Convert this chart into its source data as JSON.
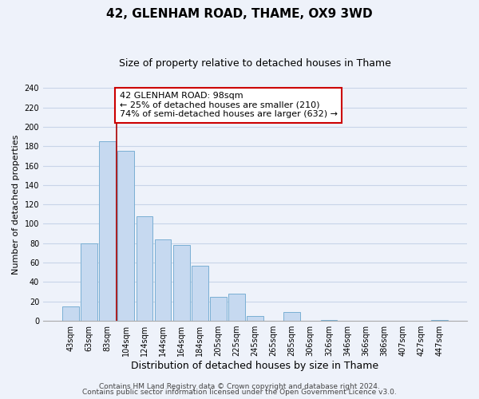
{
  "title": "42, GLENHAM ROAD, THAME, OX9 3WD",
  "subtitle": "Size of property relative to detached houses in Thame",
  "xlabel": "Distribution of detached houses by size in Thame",
  "ylabel": "Number of detached properties",
  "bins": [
    "43sqm",
    "63sqm",
    "83sqm",
    "104sqm",
    "124sqm",
    "144sqm",
    "164sqm",
    "184sqm",
    "205sqm",
    "225sqm",
    "245sqm",
    "265sqm",
    "285sqm",
    "306sqm",
    "326sqm",
    "346sqm",
    "366sqm",
    "386sqm",
    "407sqm",
    "427sqm",
    "447sqm"
  ],
  "bar_heights": [
    15,
    80,
    185,
    175,
    108,
    84,
    78,
    57,
    25,
    28,
    5,
    0,
    9,
    0,
    1,
    0,
    0,
    0,
    0,
    0,
    1
  ],
  "bar_color": "#c6d9f0",
  "bar_edge_color": "#7aafd4",
  "vline_color": "#aa0000",
  "vline_x": 2.5,
  "annotation_text_line1": "42 GLENHAM ROAD: 98sqm",
  "annotation_text_line2": "← 25% of detached houses are smaller (210)",
  "annotation_text_line3": "74% of semi-detached houses are larger (632) →",
  "annotation_box_color": "white",
  "annotation_box_edge_color": "#cc0000",
  "ylim": [
    0,
    240
  ],
  "yticks": [
    0,
    20,
    40,
    60,
    80,
    100,
    120,
    140,
    160,
    180,
    200,
    220,
    240
  ],
  "grid_color": "#c8d4e8",
  "background_color": "#eef2fa",
  "footer_line1": "Contains HM Land Registry data © Crown copyright and database right 2024.",
  "footer_line2": "Contains public sector information licensed under the Open Government Licence v3.0.",
  "title_fontsize": 11,
  "subtitle_fontsize": 9,
  "xlabel_fontsize": 9,
  "ylabel_fontsize": 8,
  "tick_fontsize": 7,
  "annotation_fontsize": 8,
  "footer_fontsize": 6.5
}
